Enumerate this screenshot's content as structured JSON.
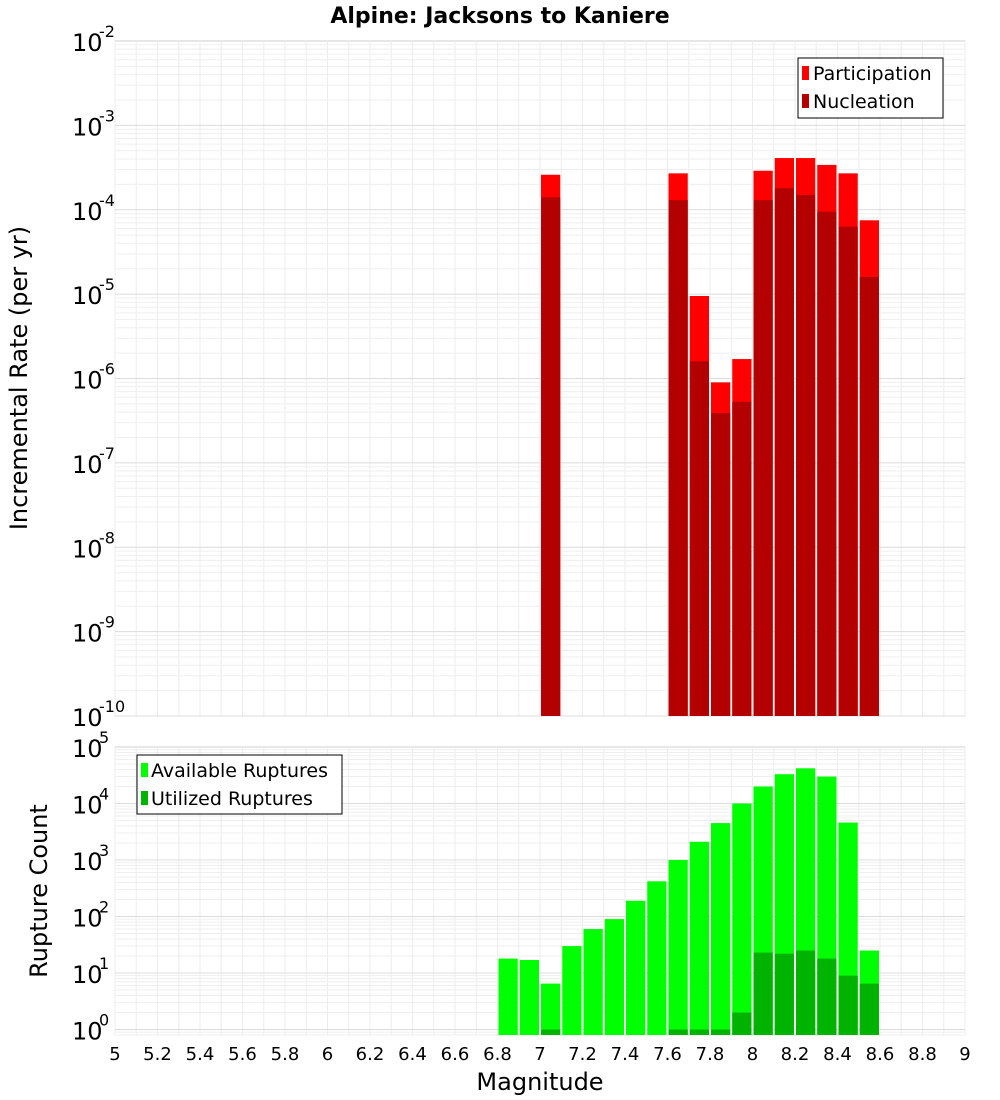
{
  "chart_data": [
    {
      "type": "bar",
      "title": "Alpine: Jacksons to Kaniere",
      "ylabel": "Incremental Rate (per yr)",
      "xlabel": "",
      "xlim": [
        5,
        9
      ],
      "ylim": [
        1e-10,
        0.01
      ],
      "yscale": "log",
      "yticks": [
        {
          "base": "10",
          "exp": "-2"
        },
        {
          "base": "10",
          "exp": "-3"
        },
        {
          "base": "10",
          "exp": "-4"
        },
        {
          "base": "10",
          "exp": "-5"
        },
        {
          "base": "10",
          "exp": "-6"
        },
        {
          "base": "10",
          "exp": "-7"
        },
        {
          "base": "10",
          "exp": "-8"
        },
        {
          "base": "10",
          "exp": "-9"
        },
        {
          "base": "10",
          "exp": "-10"
        }
      ],
      "grid": true,
      "legend_position": "top-right",
      "bar_width": 0.1,
      "series": [
        {
          "name": "Participation",
          "color": "#ff0000",
          "points": [
            [
              7.05,
              0.00026
            ],
            [
              7.65,
              0.00027
            ],
            [
              7.75,
              9.5e-06
            ],
            [
              7.85,
              9e-07
            ],
            [
              7.95,
              1.7e-06
            ],
            [
              8.05,
              0.00029
            ],
            [
              8.15,
              0.00041
            ],
            [
              8.25,
              0.00041
            ],
            [
              8.35,
              0.00034
            ],
            [
              8.45,
              0.00027
            ],
            [
              8.55,
              7.5e-05
            ]
          ]
        },
        {
          "name": "Nucleation",
          "color": "#b30000",
          "points": [
            [
              7.05,
              0.00014
            ],
            [
              7.65,
              0.00013
            ],
            [
              7.75,
              1.6e-06
            ],
            [
              7.85,
              3.9e-07
            ],
            [
              7.95,
              5.3e-07
            ],
            [
              8.05,
              0.00013
            ],
            [
              8.15,
              0.00018
            ],
            [
              8.25,
              0.00015
            ],
            [
              8.35,
              9.5e-05
            ],
            [
              8.45,
              6.3e-05
            ],
            [
              8.55,
              1.6e-05
            ]
          ]
        }
      ]
    },
    {
      "type": "bar",
      "title": "",
      "ylabel": "Rupture Count",
      "xlabel": "Magnitude",
      "xlim": [
        5,
        9
      ],
      "ylim": [
        0.8,
        100000.0
      ],
      "yscale": "log",
      "yticks": [
        {
          "value": 100000.0,
          "base": "10",
          "exp": "5"
        },
        {
          "value": 10000.0,
          "base": "10",
          "exp": "4"
        },
        {
          "value": 1000.0,
          "base": "10",
          "exp": "3"
        },
        {
          "value": 100.0,
          "base": "10",
          "exp": "2"
        },
        {
          "value": 10.0,
          "base": "10",
          "exp": "1"
        },
        {
          "value": 1.0,
          "base": "10",
          "exp": "0"
        }
      ],
      "xticks": [
        "5",
        "5.2",
        "5.4",
        "5.6",
        "5.8",
        "6",
        "6.2",
        "6.4",
        "6.6",
        "6.8",
        "7",
        "7.2",
        "7.4",
        "7.6",
        "7.8",
        "8",
        "8.2",
        "8.4",
        "8.6",
        "8.8",
        "9"
      ],
      "grid": true,
      "legend_position": "top-left",
      "bar_width": 0.1,
      "series": [
        {
          "name": "Available Ruptures",
          "color": "#00ff00",
          "points": [
            [
              6.85,
              18
            ],
            [
              6.95,
              17
            ],
            [
              7.05,
              6.5
            ],
            [
              7.15,
              30
            ],
            [
              7.25,
              60
            ],
            [
              7.35,
              90
            ],
            [
              7.45,
              190
            ],
            [
              7.55,
              420
            ],
            [
              7.65,
              1000
            ],
            [
              7.75,
              2100
            ],
            [
              7.85,
              4500
            ],
            [
              7.95,
              10000
            ],
            [
              8.05,
              20000
            ],
            [
              8.15,
              33000
            ],
            [
              8.25,
              42000
            ],
            [
              8.35,
              30000
            ],
            [
              8.45,
              4600
            ],
            [
              8.55,
              25
            ]
          ]
        },
        {
          "name": "Utilized Ruptures",
          "color": "#00b300",
          "points": [
            [
              7.05,
              1
            ],
            [
              7.65,
              1
            ],
            [
              7.75,
              1
            ],
            [
              7.85,
              1
            ],
            [
              7.95,
              2
            ],
            [
              8.05,
              23
            ],
            [
              8.15,
              22
            ],
            [
              8.25,
              25
            ],
            [
              8.35,
              18
            ],
            [
              8.45,
              9
            ],
            [
              8.55,
              6.5
            ]
          ]
        }
      ]
    }
  ]
}
